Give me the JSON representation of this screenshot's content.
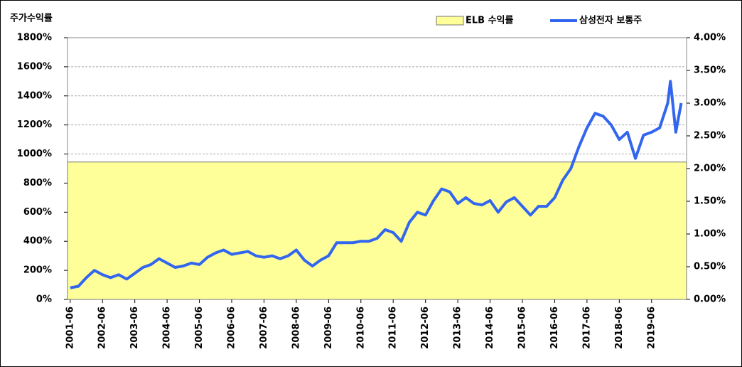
{
  "chart_data": {
    "type": "line",
    "y_axis_label": "주가수익률",
    "x": [
      "2001-06",
      "2001-09",
      "2001-12",
      "2002-03",
      "2002-06",
      "2002-09",
      "2002-12",
      "2003-03",
      "2003-06",
      "2003-09",
      "2003-12",
      "2004-03",
      "2004-06",
      "2004-09",
      "2004-12",
      "2005-03",
      "2005-06",
      "2005-09",
      "2005-12",
      "2006-03",
      "2006-06",
      "2006-09",
      "2006-12",
      "2007-03",
      "2007-06",
      "2007-09",
      "2007-12",
      "2008-03",
      "2008-06",
      "2008-09",
      "2008-12",
      "2009-03",
      "2009-06",
      "2009-09",
      "2009-12",
      "2010-03",
      "2010-06",
      "2010-09",
      "2010-12",
      "2011-03",
      "2011-06",
      "2011-09",
      "2011-12",
      "2012-03",
      "2012-06",
      "2012-09",
      "2012-12",
      "2013-03",
      "2013-06",
      "2013-09",
      "2013-12",
      "2014-03",
      "2014-06",
      "2014-09",
      "2014-12",
      "2015-03",
      "2015-06",
      "2015-09",
      "2015-12",
      "2016-03",
      "2016-06",
      "2016-09",
      "2016-12",
      "2017-03",
      "2017-06",
      "2017-09",
      "2017-12",
      "2018-03",
      "2018-06",
      "2018-09",
      "2018-12",
      "2019-03",
      "2019-06",
      "2019-09",
      "2019-12",
      "2020-01",
      "2020-03",
      "2020-05"
    ],
    "series": [
      {
        "name": "삼성전자 보통주",
        "color": "#3366ee",
        "values": [
          80,
          90,
          150,
          200,
          170,
          150,
          170,
          140,
          180,
          220,
          240,
          280,
          250,
          220,
          230,
          250,
          240,
          290,
          320,
          340,
          310,
          320,
          330,
          300,
          290,
          300,
          280,
          300,
          340,
          270,
          230,
          270,
          300,
          390,
          390,
          390,
          400,
          400,
          420,
          480,
          460,
          400,
          530,
          600,
          580,
          680,
          760,
          740,
          660,
          700,
          660,
          650,
          680,
          600,
          670,
          700,
          640,
          580,
          640,
          640,
          700,
          820,
          900,
          1050,
          1180,
          1280,
          1260,
          1200,
          1100,
          1150,
          970,
          1130,
          1150,
          1180,
          1350,
          1500,
          1150,
          1350
        ]
      }
    ],
    "elb": {
      "name": "ELB 수익률",
      "color": "#ffff99",
      "value": 2.1,
      "axis": "y2"
    },
    "xlim": [
      "2001-05",
      "2020-07"
    ],
    "xticks": [
      "2001-06",
      "2002-06",
      "2003-06",
      "2004-06",
      "2005-06",
      "2006-06",
      "2007-06",
      "2008-06",
      "2009-06",
      "2010-06",
      "2011-06",
      "2012-06",
      "2013-06",
      "2014-06",
      "2015-06",
      "2016-06",
      "2017-06",
      "2018-06",
      "2019-06"
    ],
    "ylim": [
      0,
      1800
    ],
    "yticks": [
      {
        "value": 0,
        "label": "0%"
      },
      {
        "value": 200,
        "label": "200%"
      },
      {
        "value": 400,
        "label": "400%"
      },
      {
        "value": 600,
        "label": "600%"
      },
      {
        "value": 800,
        "label": "800%"
      },
      {
        "value": 1000,
        "label": "1000%"
      },
      {
        "value": 1200,
        "label": "1200%"
      },
      {
        "value": 1400,
        "label": "1400%"
      },
      {
        "value": 1600,
        "label": "1600%"
      },
      {
        "value": 1800,
        "label": "1800%"
      }
    ],
    "y2lim": [
      0,
      4
    ],
    "y2ticks": [
      {
        "value": 0,
        "label": "0.00%"
      },
      {
        "value": 0.5,
        "label": "0.50%"
      },
      {
        "value": 1,
        "label": "1.00%"
      },
      {
        "value": 1.5,
        "label": "1.50%"
      },
      {
        "value": 2,
        "label": "2.00%"
      },
      {
        "value": 2.5,
        "label": "2.50%"
      },
      {
        "value": 3,
        "label": "3.00%"
      },
      {
        "value": 3.5,
        "label": "3.50%"
      },
      {
        "value": 4,
        "label": "4.00%"
      }
    ],
    "grid": true
  }
}
